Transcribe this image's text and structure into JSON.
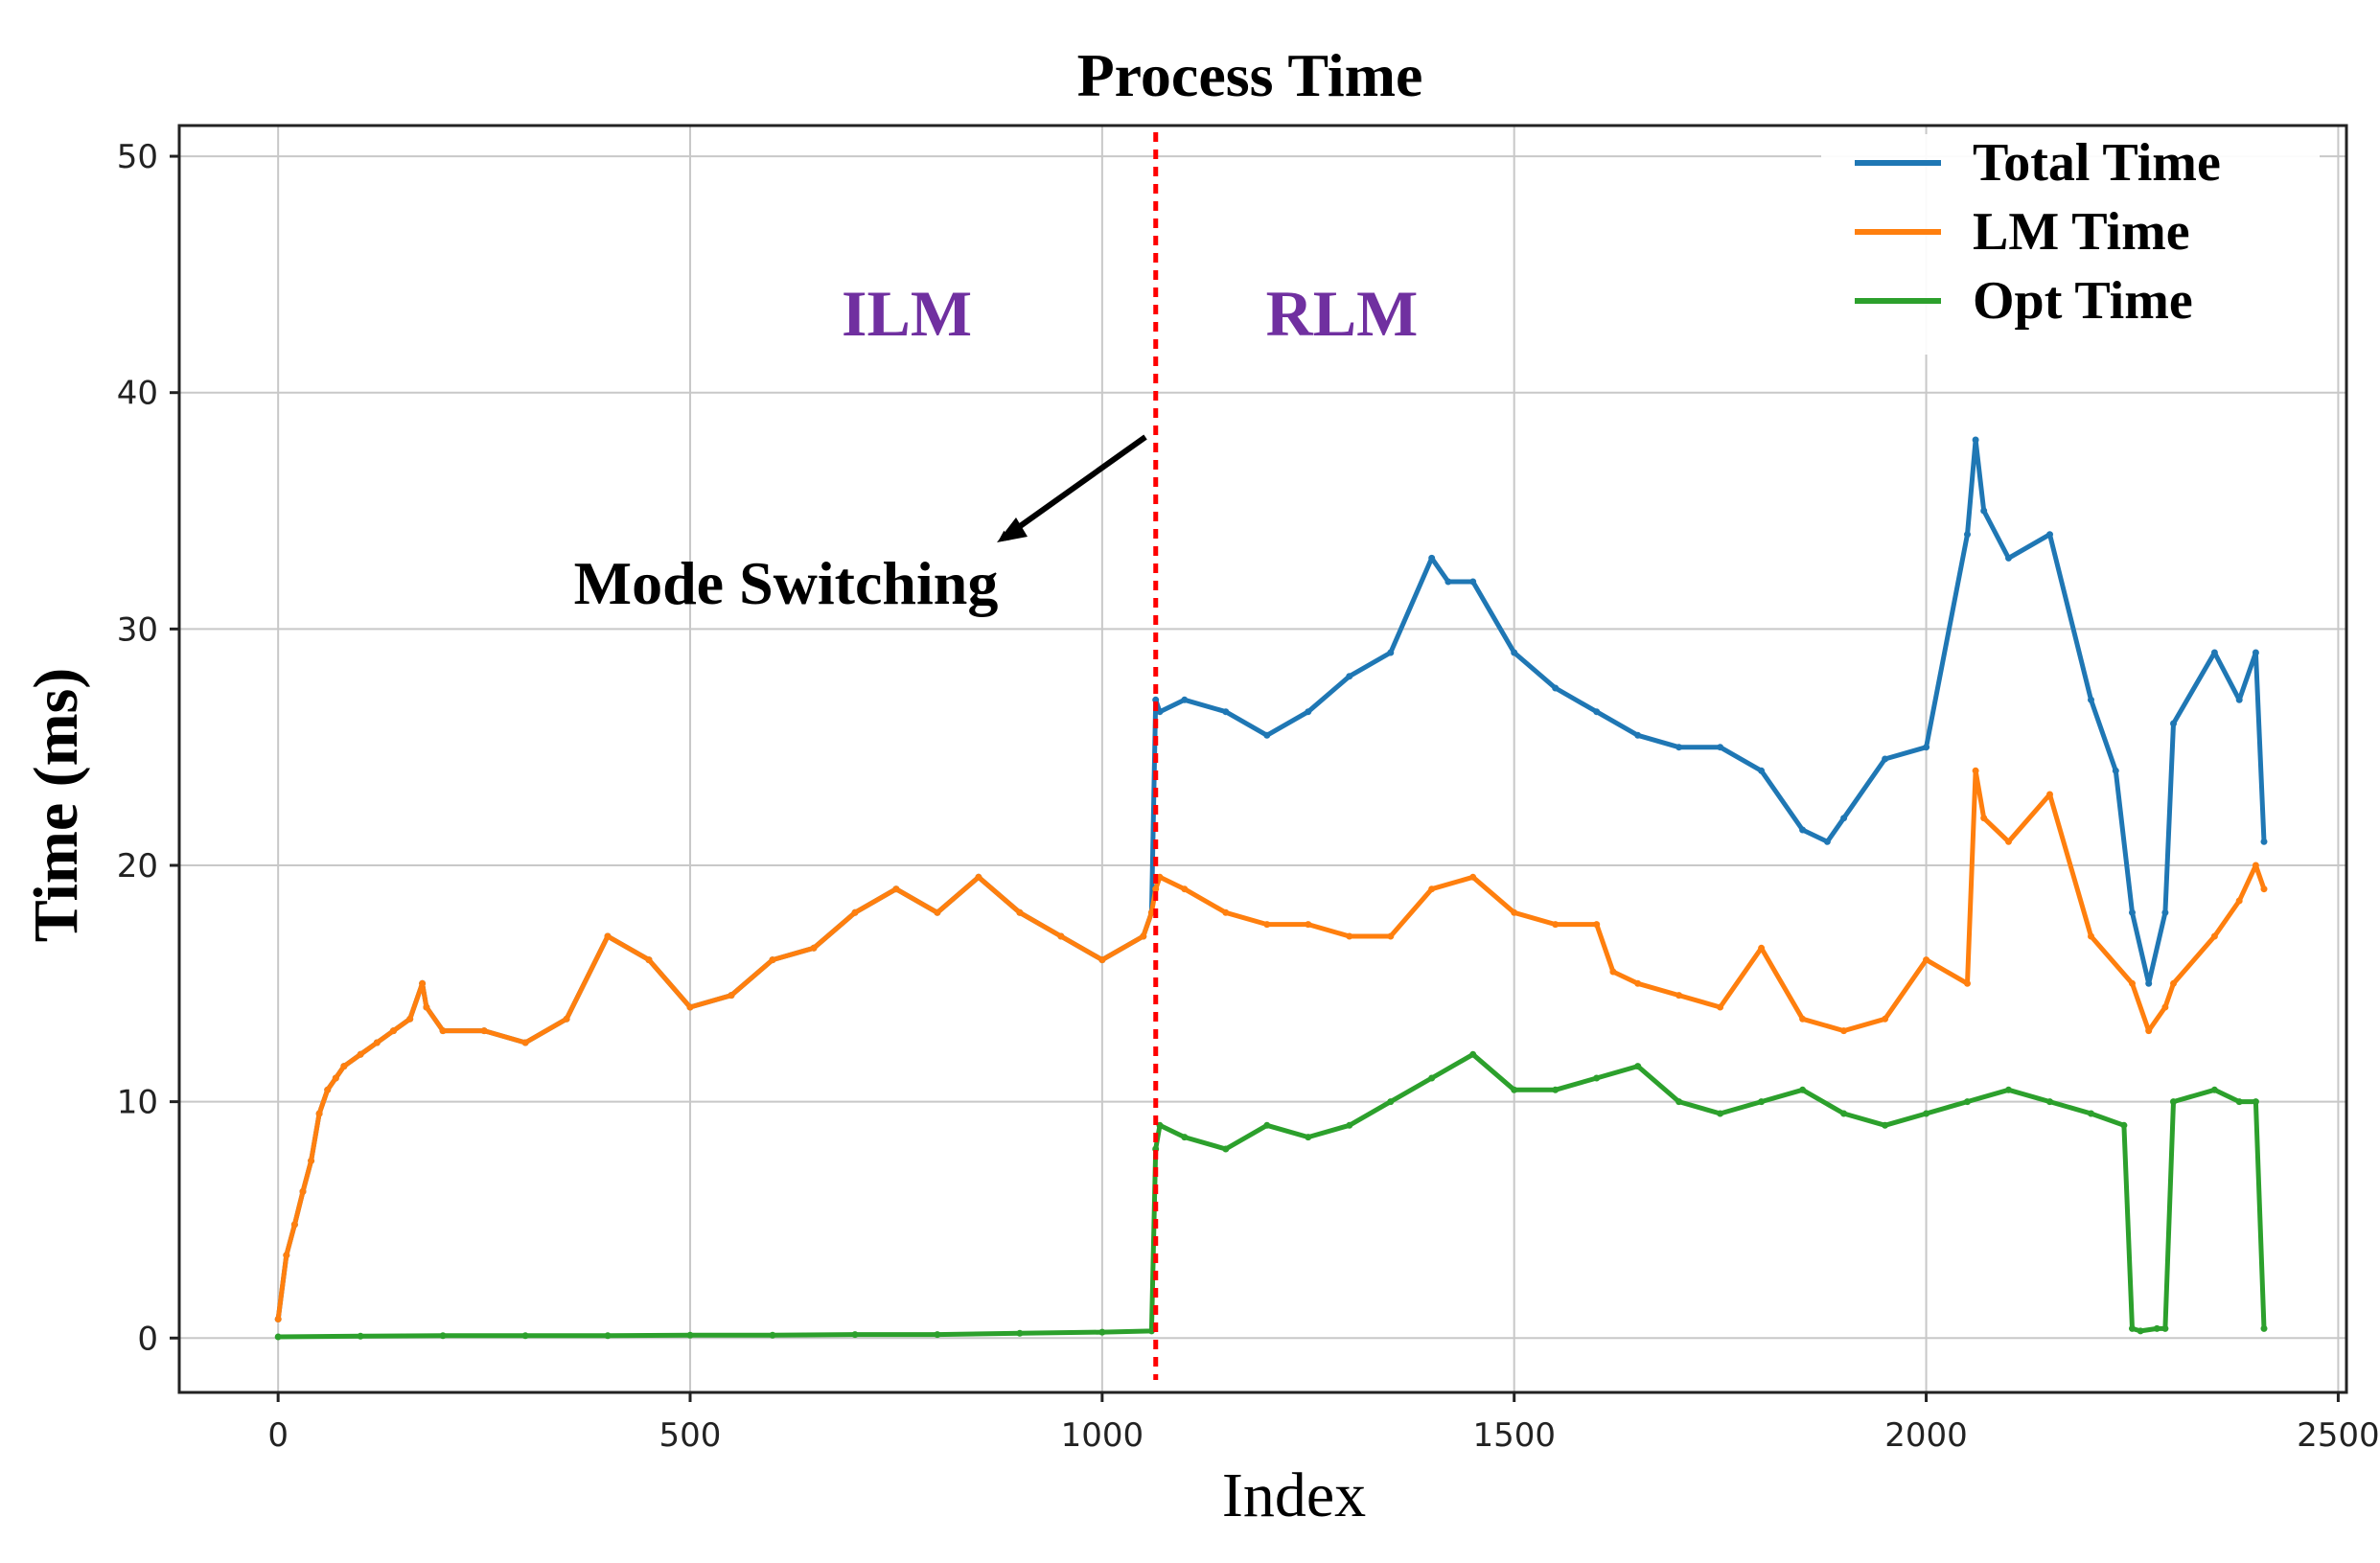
{
  "chart_data": {
    "type": "line",
    "title": "Process Time",
    "xlabel": "Index",
    "ylabel": "Time (ms)",
    "xlim": [
      -120,
      2510
    ],
    "ylim": [
      -2.3,
      51.3
    ],
    "xticks": [
      0,
      500,
      1000,
      1500,
      2000,
      2500
    ],
    "yticks": [
      0,
      10,
      20,
      30,
      40,
      50
    ],
    "grid": true,
    "legend_position": "top-right",
    "series": [
      {
        "name": "Total Time",
        "color": "#1f77b4",
        "x": [
          0,
          10,
          20,
          30,
          40,
          50,
          60,
          70,
          80,
          100,
          120,
          140,
          160,
          175,
          180,
          200,
          250,
          300,
          350,
          400,
          450,
          500,
          550,
          600,
          650,
          700,
          750,
          800,
          850,
          900,
          950,
          1000,
          1050,
          1060,
          1065,
          1070,
          1100,
          1150,
          1200,
          1250,
          1300,
          1350,
          1400,
          1420,
          1450,
          1500,
          1550,
          1600,
          1650,
          1700,
          1750,
          1800,
          1850,
          1880,
          1900,
          1950,
          2000,
          2050,
          2060,
          2070,
          2100,
          2150,
          2200,
          2230,
          2250,
          2270,
          2290,
          2300,
          2350,
          2380,
          2400,
          2410
        ],
        "y": [
          0.8,
          3.5,
          4.8,
          6.2,
          7.5,
          9.5,
          10.5,
          11.0,
          11.5,
          12.0,
          12.5,
          13.0,
          13.5,
          15.0,
          14.0,
          13.0,
          13.0,
          12.5,
          13.5,
          17.0,
          16.0,
          14.0,
          14.5,
          16.0,
          16.5,
          18.0,
          19.0,
          18.0,
          19.5,
          18.0,
          17.0,
          16.0,
          17.0,
          18.0,
          27.0,
          26.5,
          27.0,
          26.5,
          25.5,
          26.5,
          28.0,
          29.0,
          33.0,
          32.0,
          32.0,
          29.0,
          27.5,
          26.5,
          25.5,
          25.0,
          25.0,
          24.0,
          21.5,
          21.0,
          22.0,
          24.5,
          25.0,
          34.0,
          38.0,
          35.0,
          33.0,
          34.0,
          27.0,
          24.0,
          18.0,
          15.0,
          18.0,
          26.0,
          29.0,
          27.0,
          29.0,
          21.0
        ]
      },
      {
        "name": "LM Time",
        "color": "#ff7f0e",
        "x": [
          0,
          10,
          20,
          30,
          40,
          50,
          60,
          70,
          80,
          100,
          120,
          140,
          160,
          175,
          180,
          200,
          250,
          300,
          350,
          400,
          450,
          500,
          550,
          600,
          650,
          700,
          750,
          800,
          850,
          900,
          950,
          1000,
          1050,
          1060,
          1065,
          1070,
          1100,
          1150,
          1200,
          1250,
          1300,
          1350,
          1400,
          1450,
          1500,
          1550,
          1600,
          1620,
          1650,
          1700,
          1750,
          1800,
          1850,
          1900,
          1950,
          2000,
          2050,
          2060,
          2070,
          2100,
          2150,
          2200,
          2250,
          2270,
          2290,
          2300,
          2350,
          2380,
          2400,
          2410
        ],
        "y": [
          0.8,
          3.5,
          4.8,
          6.2,
          7.5,
          9.5,
          10.5,
          11.0,
          11.5,
          12.0,
          12.5,
          13.0,
          13.5,
          15.0,
          14.0,
          13.0,
          13.0,
          12.5,
          13.5,
          17.0,
          16.0,
          14.0,
          14.5,
          16.0,
          16.5,
          18.0,
          19.0,
          18.0,
          19.5,
          18.0,
          17.0,
          16.0,
          17.0,
          18.0,
          19.0,
          19.5,
          19.0,
          18.0,
          17.5,
          17.5,
          17.0,
          17.0,
          19.0,
          19.5,
          18.0,
          17.5,
          17.5,
          15.5,
          15.0,
          14.5,
          14.0,
          16.5,
          13.5,
          13.0,
          13.5,
          16.0,
          15.0,
          24.0,
          22.0,
          21.0,
          23.0,
          17.0,
          15.0,
          13.0,
          14.0,
          15.0,
          17.0,
          18.5,
          20.0,
          19.0
        ]
      },
      {
        "name": "Opt Time",
        "color": "#2ca02c",
        "x": [
          0,
          100,
          200,
          300,
          400,
          500,
          600,
          700,
          800,
          900,
          1000,
          1060,
          1065,
          1070,
          1100,
          1150,
          1200,
          1250,
          1300,
          1350,
          1400,
          1450,
          1500,
          1550,
          1600,
          1650,
          1700,
          1750,
          1800,
          1850,
          1900,
          1950,
          2000,
          2050,
          2100,
          2150,
          2200,
          2240,
          2250,
          2260,
          2280,
          2290,
          2300,
          2350,
          2380,
          2400,
          2410
        ],
        "y": [
          0.05,
          0.08,
          0.1,
          0.1,
          0.1,
          0.12,
          0.12,
          0.15,
          0.15,
          0.2,
          0.25,
          0.3,
          8.0,
          9.0,
          8.5,
          8.0,
          9.0,
          8.5,
          9.0,
          10.0,
          11.0,
          12.0,
          10.5,
          10.5,
          11.0,
          11.5,
          10.0,
          9.5,
          10.0,
          10.5,
          9.5,
          9.0,
          9.5,
          10.0,
          10.5,
          10.0,
          9.5,
          9.0,
          0.4,
          0.3,
          0.4,
          0.4,
          10.0,
          10.5,
          10.0,
          10.0,
          0.4
        ]
      }
    ],
    "annotations": {
      "mode_switch_x": 1065,
      "mode_switch_color": "#ff0000",
      "left_region_label": "ILM",
      "right_region_label": "RLM",
      "region_label_color": "#7030a0",
      "arrow_label": "Mode Switching"
    }
  }
}
